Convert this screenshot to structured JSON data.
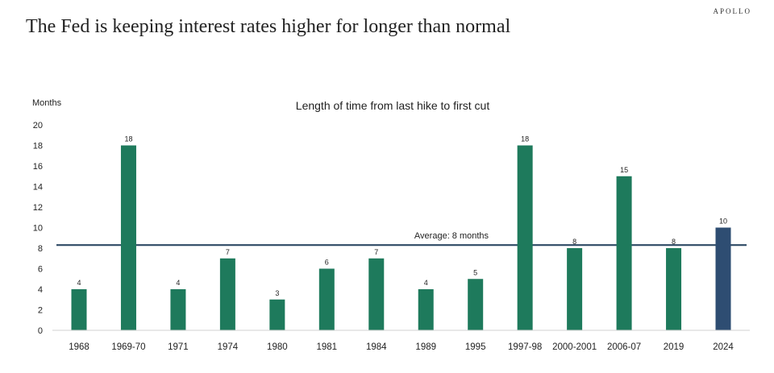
{
  "brand": "APOLLO",
  "title": "The Fed is keeping interest rates higher for longer than normal",
  "chart_data": {
    "type": "bar",
    "title": "Length of time from last hike to first cut",
    "ylabel": "Months",
    "xlabel": "",
    "ylim": [
      0,
      20
    ],
    "yticks": [
      0,
      2,
      4,
      6,
      8,
      10,
      12,
      14,
      16,
      18,
      20
    ],
    "categories": [
      "1968",
      "1969-70",
      "1971",
      "1974",
      "1980",
      "1981",
      "1984",
      "1989",
      "1995",
      "1997-98",
      "2000-2001",
      "2006-07",
      "2019",
      "2024"
    ],
    "values": [
      4,
      18,
      4,
      7,
      3,
      6,
      7,
      4,
      5,
      18,
      8,
      15,
      8,
      10
    ],
    "bar_colors": [
      "#1e7a5c",
      "#1e7a5c",
      "#1e7a5c",
      "#1e7a5c",
      "#1e7a5c",
      "#1e7a5c",
      "#1e7a5c",
      "#1e7a5c",
      "#1e7a5c",
      "#1e7a5c",
      "#1e7a5c",
      "#1e7a5c",
      "#1e7a5c",
      "#2e4d72"
    ],
    "average": {
      "value": 8.3,
      "label": "Average: 8 months",
      "color": "#2e4a64"
    },
    "grid": false,
    "legend": "none"
  }
}
